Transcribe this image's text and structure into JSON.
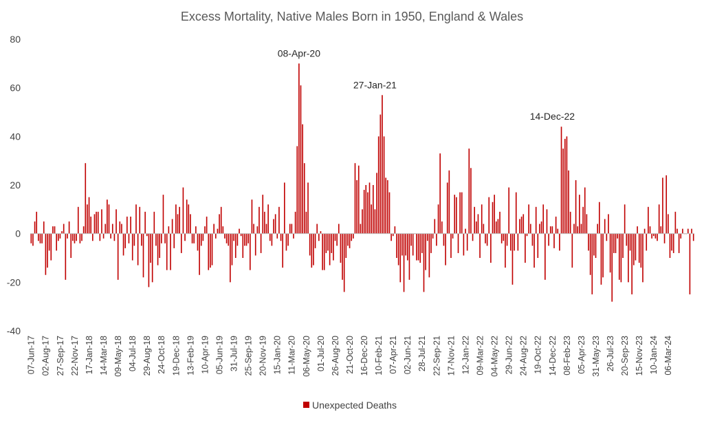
{
  "chart_data": {
    "type": "bar",
    "title": "Excess Mortality, Native Males Born in 1950, England & Wales",
    "xlabel": "",
    "ylabel": "",
    "ylim": [
      -40,
      80
    ],
    "yticks": [
      80,
      60,
      40,
      20,
      0,
      -20,
      -40
    ],
    "grid": false,
    "legend_position": "bottom",
    "start_date": "07-Jun-17",
    "end_date": "20-Mar-24",
    "x_tick_labels": [
      "07-Jun-17",
      "02-Aug-17",
      "27-Sep-17",
      "22-Nov-17",
      "17-Jan-18",
      "14-Mar-18",
      "09-May-18",
      "04-Jul-18",
      "29-Aug-18",
      "24-Oct-18",
      "19-Dec-18",
      "13-Feb-19",
      "10-Apr-19",
      "05-Jun-19",
      "31-Jul-19",
      "25-Sep-19",
      "20-Nov-19",
      "15-Jan-20",
      "11-Mar-20",
      "06-May-20",
      "01-Jul-20",
      "26-Aug-20",
      "21-Oct-20",
      "16-Dec-20",
      "10-Feb-21",
      "07-Apr-21",
      "02-Jun-21",
      "28-Jul-21",
      "22-Sep-21",
      "17-Nov-21",
      "12-Jan-22",
      "09-Mar-22",
      "04-May-22",
      "29-Jun-22",
      "24-Aug-22",
      "19-Oct-22",
      "14-Dec-22",
      "08-Feb-23",
      "05-Apr-23",
      "31-May-23",
      "26-Jul-23",
      "20-Sep-23",
      "15-Nov-23",
      "10-Jan-24",
      "06-Mar-24"
    ],
    "series": [
      {
        "name": "Unexpected Deaths",
        "color": "#C00000",
        "values": [
          -4,
          -5,
          5,
          9,
          -3,
          -4,
          -4,
          5,
          -17,
          -14,
          -7,
          -11,
          3,
          3,
          -7,
          -3,
          -2,
          1,
          4,
          -19,
          -2,
          5,
          -10,
          -3,
          -4,
          -3,
          11,
          -4,
          -3,
          3,
          29,
          12,
          15,
          7,
          -3,
          8,
          9,
          9,
          -3,
          10,
          -2,
          4,
          14,
          12,
          -2,
          4,
          -3,
          10,
          -19,
          5,
          4,
          -9,
          -6,
          7,
          -4,
          7,
          -11,
          -5,
          12,
          -13,
          11,
          -5,
          -18,
          9,
          -1,
          -22,
          -12,
          -20,
          9,
          -5,
          -13,
          -10,
          -4,
          16,
          -4,
          -15,
          3,
          -15,
          6,
          -6,
          12,
          8,
          11,
          -8,
          19,
          -3,
          14,
          12,
          8,
          -4,
          -4,
          3,
          -7,
          -17,
          -5,
          -3,
          3,
          7,
          -15,
          -14,
          -13,
          4,
          -2,
          2,
          8,
          11,
          3,
          -2,
          -4,
          -5,
          -20,
          -13,
          -3,
          -10,
          -5,
          2,
          -1,
          -10,
          -5,
          -5,
          -4,
          -15,
          14,
          4,
          -9,
          3,
          11,
          -8,
          16,
          9,
          4,
          12,
          -3,
          -5,
          6,
          8,
          -2,
          11,
          -3,
          -14,
          21,
          -7,
          -5,
          4,
          4,
          -2,
          9,
          36,
          70,
          61,
          45,
          29,
          9,
          21,
          -9,
          -14,
          -13,
          -6,
          4,
          -3,
          1,
          -15,
          -15,
          -8,
          -7,
          -13,
          -8,
          -11,
          -3,
          -5,
          4,
          -12,
          -19,
          -24,
          -10,
          -5,
          -6,
          -3,
          -2,
          29,
          22,
          28,
          4,
          10,
          18,
          20,
          17,
          21,
          12,
          20,
          10,
          25,
          40,
          49,
          57,
          40,
          23,
          22,
          17,
          -3,
          -1,
          3,
          -10,
          -13,
          -20,
          -9,
          -24,
          -9,
          -11,
          -19,
          -5,
          -9,
          0,
          -11,
          -11,
          -12,
          -8,
          -24,
          -15,
          -3,
          -18,
          -8,
          -2,
          6,
          -5,
          12,
          33,
          5,
          -5,
          -13,
          21,
          26,
          -10,
          -2,
          16,
          15,
          -8,
          17,
          17,
          -9,
          2,
          -7,
          35,
          27,
          -3,
          11,
          5,
          8,
          -10,
          12,
          4,
          -4,
          -5,
          15,
          -12,
          13,
          16,
          5,
          6,
          9,
          -4,
          -3,
          -14,
          -5,
          19,
          -7,
          -21,
          -7,
          17,
          -7,
          6,
          7,
          8,
          -12,
          -1,
          12,
          4,
          -5,
          -14,
          11,
          -10,
          4,
          5,
          12,
          -19,
          10,
          -5,
          3,
          3,
          -6,
          7,
          2,
          -7,
          44,
          35,
          39,
          40,
          26,
          9,
          -14,
          4,
          22,
          3,
          16,
          4,
          11,
          19,
          8,
          -7,
          -17,
          -25,
          -9,
          -10,
          4,
          13,
          -21,
          -18,
          6,
          -3,
          8,
          -16,
          -28,
          -8,
          -8,
          -2,
          -19,
          -20,
          -10,
          12,
          -5,
          -20,
          -7,
          -25,
          -13,
          -11,
          3,
          -12,
          -14,
          -20,
          2,
          -7,
          11,
          3,
          -2,
          -1,
          -2,
          -3,
          12,
          3,
          23,
          -4,
          24,
          8,
          -10,
          -7,
          -8,
          9,
          2,
          -8,
          -2,
          2,
          0,
          0,
          2,
          -25,
          2,
          -3
        ]
      }
    ],
    "annotations": [
      {
        "label": "08-Apr-20",
        "value": 70
      },
      {
        "label": "27-Jan-21",
        "value": 57
      },
      {
        "label": "14-Dec-22",
        "value": 44
      }
    ]
  }
}
